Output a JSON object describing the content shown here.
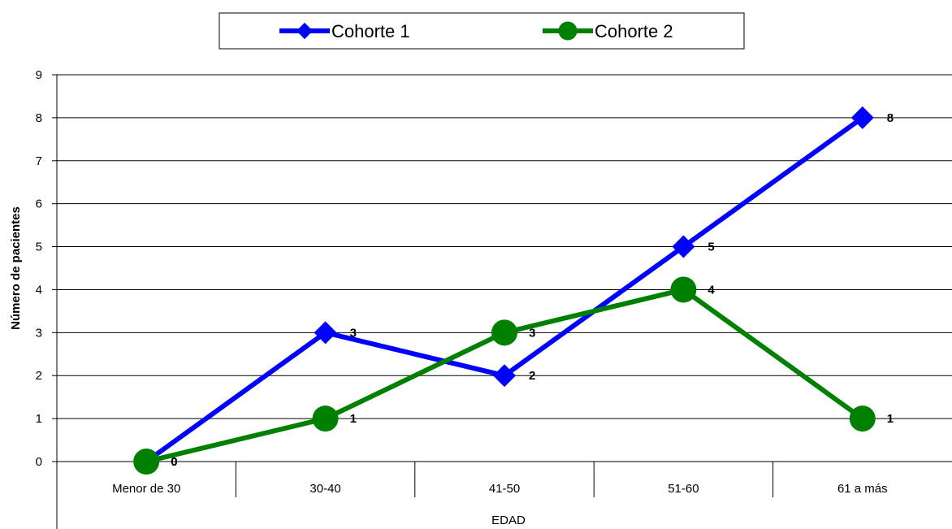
{
  "chart_data": {
    "type": "line",
    "categories": [
      "Menor de 30",
      "30-40",
      "41-50",
      "51-60",
      "61 a más"
    ],
    "series": [
      {
        "name": "Cohorte 1",
        "values": [
          0,
          3,
          2,
          5,
          8
        ],
        "color": "#0000ff",
        "marker": "diamond"
      },
      {
        "name": "Cohorte 2",
        "values": [
          0,
          1,
          3,
          4,
          1
        ],
        "color": "#008000",
        "marker": "circle"
      }
    ],
    "xlabel": "EDAD",
    "ylabel": "Número de pacientes",
    "ylim": [
      0,
      9
    ],
    "yticks": [
      0,
      1,
      2,
      3,
      4,
      5,
      6,
      7,
      8,
      9
    ],
    "grid": true,
    "legend": "top-center",
    "data_labels": true
  }
}
